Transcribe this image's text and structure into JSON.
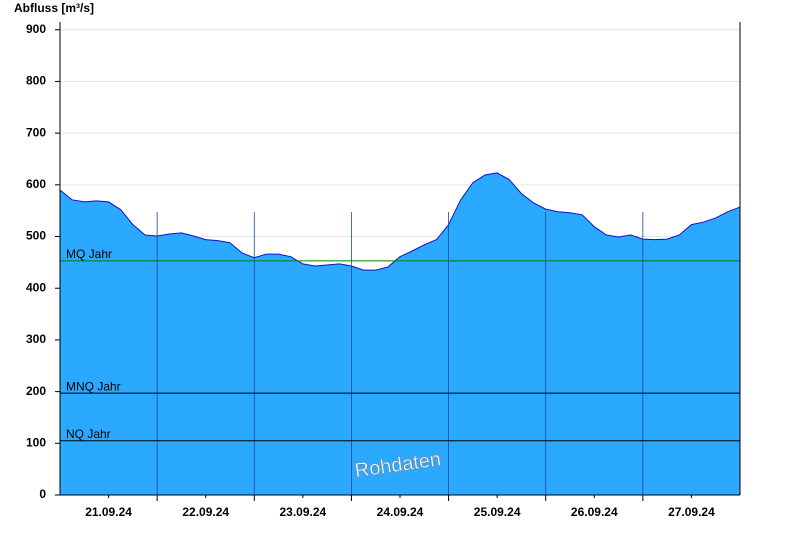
{
  "chart_data": {
    "type": "area",
    "y_label": "Abfluss [m³/s]",
    "color": "#2ba8ff",
    "line_color": "#1010c8",
    "x": [
      0,
      3,
      6,
      9,
      12,
      15,
      18,
      21,
      24,
      27,
      30,
      33,
      36,
      39,
      42,
      45,
      48,
      51,
      54,
      57,
      60,
      63,
      66,
      69,
      72,
      75,
      78,
      81,
      84,
      87,
      90,
      93,
      96,
      99,
      102,
      105,
      108,
      111,
      114,
      117,
      120,
      123,
      126,
      129,
      132,
      135,
      138,
      141,
      144,
      147,
      150,
      153,
      156,
      159,
      162,
      165,
      168
    ],
    "values": [
      590,
      571,
      567,
      569,
      567,
      552,
      523,
      503,
      501,
      505,
      507,
      501,
      494,
      492,
      488,
      468,
      459,
      466,
      466,
      461,
      447,
      443,
      445,
      447,
      443,
      435,
      435,
      441,
      461,
      472,
      484,
      494,
      523,
      571,
      604,
      619,
      623,
      610,
      583,
      565,
      553,
      548,
      546,
      542,
      519,
      503,
      499,
      503,
      495,
      494,
      495,
      503,
      523,
      528,
      536,
      548,
      557
    ],
    "xlim": [
      0,
      168
    ],
    "xticks": [
      {
        "value": 12,
        "label": "21.09.24"
      },
      {
        "value": 36,
        "label": "22.09.24"
      },
      {
        "value": 60,
        "label": "23.09.24"
      },
      {
        "value": 84,
        "label": "24.09.24"
      },
      {
        "value": 108,
        "label": "25.09.24"
      },
      {
        "value": 132,
        "label": "26.09.24"
      },
      {
        "value": 156,
        "label": "27.09.24"
      }
    ],
    "xgrid": [
      24,
      48,
      72,
      96,
      120,
      144
    ],
    "ylim": [
      0,
      915
    ],
    "yticks": [
      0,
      100,
      200,
      300,
      400,
      500,
      600,
      700,
      800,
      900
    ],
    "grid": true,
    "reference_lines": [
      {
        "label": "MQ Jahr",
        "value": 453,
        "color": "#008000"
      },
      {
        "label": "MNQ Jahr",
        "value": 197,
        "color": "#000000"
      },
      {
        "label": "NQ Jahr",
        "value": 105,
        "color": "#000000"
      }
    ],
    "watermark": "Rohdaten"
  }
}
